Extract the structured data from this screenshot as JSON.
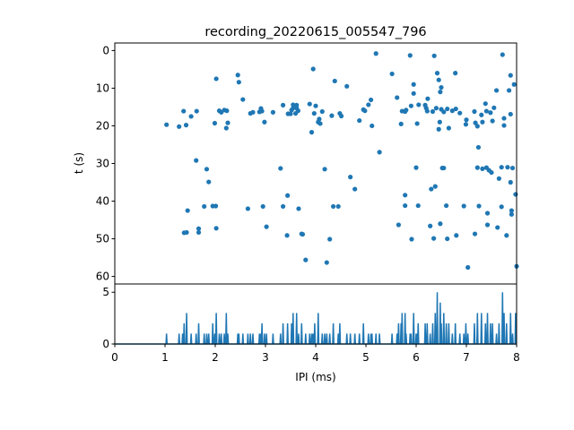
{
  "chart_data": {
    "title": "recording_20220615_005547_796",
    "colors": {
      "series": "#1f77b4",
      "axes": "#000000",
      "background": "#ffffff"
    },
    "raster": {
      "type": "scatter",
      "ylabel": "t (s)",
      "xlim": [
        0,
        8
      ],
      "ylim": [
        62,
        -2
      ],
      "y_inverted": true,
      "y_ticks": [
        0,
        10,
        20,
        30,
        40,
        50,
        60
      ],
      "grid": false,
      "points": [
        [
          1.03,
          19.7
        ],
        [
          1.28,
          20.2
        ],
        [
          1.37,
          16.1
        ],
        [
          1.42,
          19.8
        ],
        [
          1.38,
          48.4
        ],
        [
          1.43,
          48.3
        ],
        [
          1.45,
          42.5
        ],
        [
          1.52,
          17.5
        ],
        [
          1.63,
          16.1
        ],
        [
          1.62,
          29.2
        ],
        [
          1.67,
          47.3
        ],
        [
          1.67,
          48.3
        ],
        [
          1.78,
          41.4
        ],
        [
          1.83,
          31.5
        ],
        [
          1.87,
          34.9
        ],
        [
          1.95,
          41.3
        ],
        [
          1.99,
          19.3
        ],
        [
          2.01,
          41.3
        ],
        [
          2.02,
          7.5
        ],
        [
          2.02,
          47.2
        ],
        [
          2.08,
          16.0
        ],
        [
          2.12,
          16.4
        ],
        [
          2.18,
          15.8
        ],
        [
          2.22,
          20.6
        ],
        [
          2.25,
          19.2
        ],
        [
          2.23,
          16.0
        ],
        [
          2.45,
          6.5
        ],
        [
          2.47,
          8.4
        ],
        [
          2.55,
          13.0
        ],
        [
          2.65,
          42.0
        ],
        [
          2.7,
          16.7
        ],
        [
          2.75,
          16.4
        ],
        [
          2.88,
          16.3
        ],
        [
          2.91,
          15.4
        ],
        [
          2.93,
          16.1
        ],
        [
          2.95,
          41.4
        ],
        [
          2.98,
          19.0
        ],
        [
          3.02,
          46.8
        ],
        [
          3.15,
          16.4
        ],
        [
          3.3,
          31.3
        ],
        [
          3.35,
          14.5
        ],
        [
          3.35,
          41.4
        ],
        [
          3.44,
          38.5
        ],
        [
          3.43,
          49.1
        ],
        [
          3.45,
          16.8
        ],
        [
          3.5,
          16.8
        ],
        [
          3.52,
          15.8
        ],
        [
          3.55,
          14.4
        ],
        [
          3.55,
          15.3
        ],
        [
          3.6,
          16.7
        ],
        [
          3.62,
          15.3
        ],
        [
          3.62,
          14.5
        ],
        [
          3.65,
          16.0
        ],
        [
          3.66,
          42.0
        ],
        [
          3.72,
          48.7
        ],
        [
          3.74,
          48.8
        ],
        [
          3.8,
          55.6
        ],
        [
          3.88,
          14.2
        ],
        [
          3.92,
          21.7
        ],
        [
          3.95,
          4.9
        ],
        [
          3.97,
          16.7
        ],
        [
          4.0,
          14.7
        ],
        [
          4.05,
          19.0
        ],
        [
          4.07,
          18.2
        ],
        [
          4.09,
          19.4
        ],
        [
          4.13,
          16.2
        ],
        [
          4.18,
          31.5
        ],
        [
          4.22,
          56.3
        ],
        [
          4.28,
          50.1
        ],
        [
          4.32,
          17.3
        ],
        [
          4.38,
          8.1
        ],
        [
          4.35,
          41.4
        ],
        [
          4.45,
          41.4
        ],
        [
          4.48,
          16.7
        ],
        [
          4.51,
          17.4
        ],
        [
          4.62,
          9.5
        ],
        [
          4.69,
          33.6
        ],
        [
          4.78,
          36.8
        ],
        [
          4.87,
          18.6
        ],
        [
          4.95,
          15.7
        ],
        [
          4.98,
          16.0
        ],
        [
          5.05,
          14.4
        ],
        [
          5.1,
          13.1
        ],
        [
          5.12,
          20.0
        ],
        [
          5.2,
          0.8
        ],
        [
          5.27,
          27.0
        ],
        [
          5.52,
          6.2
        ],
        [
          5.62,
          12.5
        ],
        [
          5.65,
          46.3
        ],
        [
          5.7,
          19.5
        ],
        [
          5.72,
          16.1
        ],
        [
          5.78,
          16.2
        ],
        [
          5.78,
          38.4
        ],
        [
          5.78,
          41.2
        ],
        [
          5.8,
          15.8
        ],
        [
          5.88,
          1.3
        ],
        [
          5.9,
          14.7
        ],
        [
          5.91,
          50.1
        ],
        [
          5.95,
          9.0
        ],
        [
          5.95,
          11.4
        ],
        [
          6.0,
          31.1
        ],
        [
          6.02,
          19.4
        ],
        [
          6.04,
          41.2
        ],
        [
          6.05,
          14.4
        ],
        [
          6.18,
          14.5
        ],
        [
          6.2,
          15.3
        ],
        [
          6.22,
          16.1
        ],
        [
          6.23,
          12.8
        ],
        [
          6.28,
          46.6
        ],
        [
          6.3,
          36.8
        ],
        [
          6.33,
          16.2
        ],
        [
          6.35,
          49.9
        ],
        [
          6.36,
          1.4
        ],
        [
          6.38,
          36.1
        ],
        [
          6.4,
          15.3
        ],
        [
          6.42,
          6.0
        ],
        [
          6.45,
          7.8
        ],
        [
          6.48,
          11.0
        ],
        [
          6.48,
          46.0
        ],
        [
          6.45,
          20.9
        ],
        [
          6.47,
          19.0
        ],
        [
          6.5,
          9.8
        ],
        [
          6.5,
          15.6
        ],
        [
          6.52,
          31.2
        ],
        [
          6.55,
          16.3
        ],
        [
          6.55,
          31.2
        ],
        [
          6.6,
          41.2
        ],
        [
          6.62,
          15.5
        ],
        [
          6.62,
          50.0
        ],
        [
          6.65,
          20.6
        ],
        [
          6.72,
          16.0
        ],
        [
          6.78,
          6.0
        ],
        [
          6.79,
          15.5
        ],
        [
          6.8,
          49.1
        ],
        [
          6.87,
          16.6
        ],
        [
          6.95,
          41.3
        ],
        [
          6.99,
          19.6
        ],
        [
          7.0,
          18.4
        ],
        [
          7.03,
          57.6
        ],
        [
          7.16,
          16.2
        ],
        [
          7.17,
          48.7
        ],
        [
          7.18,
          19.2
        ],
        [
          7.22,
          20.1
        ],
        [
          7.22,
          31.1
        ],
        [
          7.24,
          25.7
        ],
        [
          7.25,
          41.3
        ],
        [
          7.3,
          17.1
        ],
        [
          7.32,
          31.4
        ],
        [
          7.32,
          19.0
        ],
        [
          7.38,
          14.1
        ],
        [
          7.4,
          16.1
        ],
        [
          7.4,
          31.1
        ],
        [
          7.42,
          43.2
        ],
        [
          7.42,
          46.3
        ],
        [
          7.45,
          31.8
        ],
        [
          7.48,
          16.5
        ],
        [
          7.5,
          32.4
        ],
        [
          7.52,
          18.7
        ],
        [
          7.55,
          15.2
        ],
        [
          7.6,
          10.6
        ],
        [
          7.62,
          47.0
        ],
        [
          7.65,
          34.0
        ],
        [
          7.7,
          41.5
        ],
        [
          7.7,
          31.0
        ],
        [
          7.72,
          1.1
        ],
        [
          7.75,
          19.9
        ],
        [
          7.75,
          18.0
        ],
        [
          7.8,
          49.1
        ],
        [
          7.82,
          31.0
        ],
        [
          7.85,
          10.6
        ],
        [
          7.88,
          16.9
        ],
        [
          7.88,
          6.6
        ],
        [
          7.88,
          35.0
        ],
        [
          7.9,
          42.5
        ],
        [
          7.9,
          43.5
        ],
        [
          7.92,
          31.2
        ],
        [
          7.95,
          9.0
        ],
        [
          7.98,
          38.2
        ],
        [
          8.0,
          57.3
        ]
      ]
    },
    "histogram": {
      "type": "line",
      "xlabel": "IPI (ms)",
      "xlim": [
        0,
        8
      ],
      "ylim": [
        0,
        5.8
      ],
      "x_ticks": [
        0,
        1,
        2,
        3,
        4,
        5,
        6,
        7,
        8
      ],
      "y_ticks": [
        0,
        5
      ],
      "grid": false,
      "bins": [
        [
          1.03,
          1
        ],
        [
          1.28,
          1
        ],
        [
          1.35,
          1
        ],
        [
          1.38,
          2
        ],
        [
          1.43,
          3
        ],
        [
          1.52,
          1
        ],
        [
          1.62,
          1
        ],
        [
          1.67,
          2
        ],
        [
          1.78,
          1
        ],
        [
          1.83,
          1
        ],
        [
          1.87,
          1
        ],
        [
          1.95,
          2
        ],
        [
          1.99,
          1
        ],
        [
          2.02,
          3
        ],
        [
          2.08,
          1
        ],
        [
          2.12,
          1
        ],
        [
          2.18,
          1
        ],
        [
          2.22,
          3
        ],
        [
          2.25,
          1
        ],
        [
          2.45,
          1
        ],
        [
          2.47,
          1
        ],
        [
          2.55,
          1
        ],
        [
          2.65,
          1
        ],
        [
          2.7,
          1
        ],
        [
          2.75,
          1
        ],
        [
          2.88,
          1
        ],
        [
          2.91,
          1
        ],
        [
          2.93,
          2
        ],
        [
          2.98,
          1
        ],
        [
          3.02,
          1
        ],
        [
          3.15,
          1
        ],
        [
          3.3,
          1
        ],
        [
          3.35,
          2
        ],
        [
          3.44,
          2
        ],
        [
          3.52,
          2
        ],
        [
          3.55,
          3
        ],
        [
          3.62,
          3
        ],
        [
          3.66,
          1
        ],
        [
          3.72,
          2
        ],
        [
          3.8,
          1
        ],
        [
          3.88,
          1
        ],
        [
          3.92,
          1
        ],
        [
          3.95,
          1
        ],
        [
          3.98,
          2
        ],
        [
          4.05,
          3
        ],
        [
          4.13,
          1
        ],
        [
          4.18,
          1
        ],
        [
          4.22,
          1
        ],
        [
          4.28,
          1
        ],
        [
          4.35,
          2
        ],
        [
          4.45,
          1
        ],
        [
          4.48,
          2
        ],
        [
          4.62,
          1
        ],
        [
          4.69,
          1
        ],
        [
          4.78,
          1
        ],
        [
          4.87,
          1
        ],
        [
          4.95,
          2
        ],
        [
          5.05,
          1
        ],
        [
          5.1,
          1
        ],
        [
          5.12,
          1
        ],
        [
          5.2,
          1
        ],
        [
          5.27,
          1
        ],
        [
          5.52,
          1
        ],
        [
          5.62,
          1
        ],
        [
          5.65,
          2
        ],
        [
          5.7,
          2
        ],
        [
          5.72,
          3
        ],
        [
          5.78,
          3
        ],
        [
          5.8,
          1
        ],
        [
          5.88,
          1
        ],
        [
          5.9,
          1
        ],
        [
          5.95,
          3
        ],
        [
          6.0,
          1
        ],
        [
          6.02,
          1
        ],
        [
          6.04,
          2
        ],
        [
          6.18,
          2
        ],
        [
          6.22,
          2
        ],
        [
          6.28,
          1
        ],
        [
          6.33,
          2
        ],
        [
          6.38,
          3
        ],
        [
          6.42,
          5
        ],
        [
          6.48,
          4
        ],
        [
          6.5,
          2
        ],
        [
          6.55,
          3
        ],
        [
          6.6,
          2
        ],
        [
          6.65,
          2
        ],
        [
          6.72,
          1
        ],
        [
          6.78,
          2
        ],
        [
          6.87,
          1
        ],
        [
          6.95,
          1
        ],
        [
          6.99,
          2
        ],
        [
          7.03,
          1
        ],
        [
          7.16,
          2
        ],
        [
          7.22,
          3
        ],
        [
          7.3,
          3
        ],
        [
          7.38,
          2
        ],
        [
          7.42,
          3
        ],
        [
          7.48,
          2
        ],
        [
          7.52,
          2
        ],
        [
          7.6,
          1
        ],
        [
          7.65,
          2
        ],
        [
          7.72,
          5
        ],
        [
          7.75,
          3
        ],
        [
          7.8,
          2
        ],
        [
          7.88,
          3
        ],
        [
          7.92,
          1
        ],
        [
          7.98,
          3
        ]
      ]
    }
  }
}
